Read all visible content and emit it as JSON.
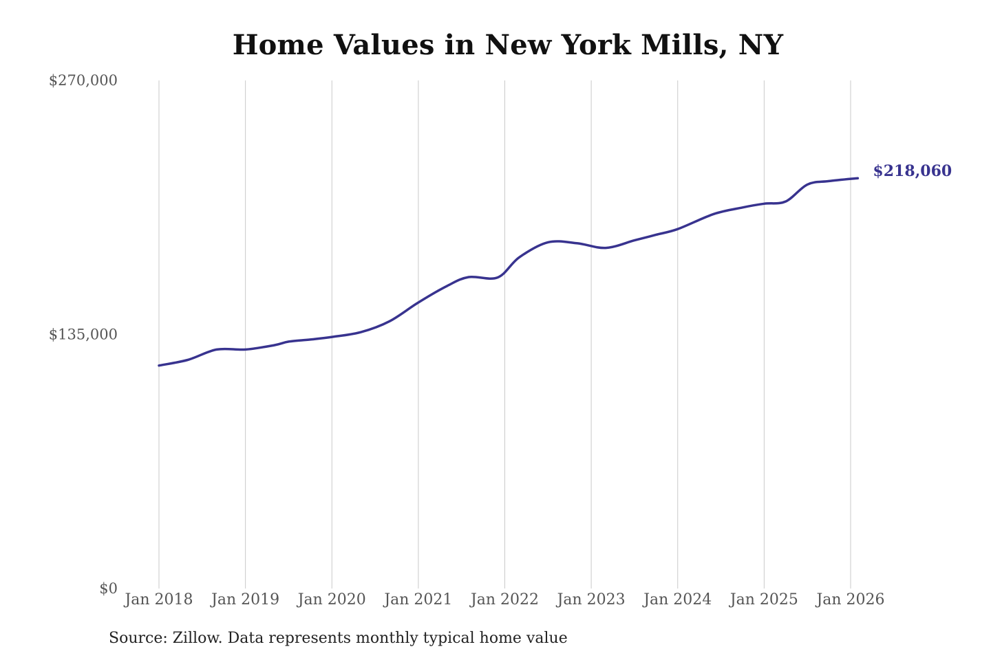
{
  "chart_data": {
    "type": "line",
    "title": "Home Values in New York Mills, NY",
    "source": "Source: Zillow. Data represents monthly typical home value",
    "xlabel": "",
    "ylabel": "",
    "x_ticks": [
      "Jan 2018",
      "Jan 2019",
      "Jan 2020",
      "Jan 2021",
      "Jan 2022",
      "Jan 2023",
      "Jan 2024",
      "Jan 2025",
      "Jan 2026"
    ],
    "y_ticks": [
      {
        "value": 0,
        "label": "$0"
      },
      {
        "value": 135000,
        "label": "$135,000"
      },
      {
        "value": 270000,
        "label": "$270,000"
      }
    ],
    "ylim": [
      0,
      270000
    ],
    "xlim": [
      2018.0,
      2026.0
    ],
    "grid": "vertical",
    "line_color": "#38338f",
    "end_label": "$218,060",
    "series": [
      {
        "values": [
          {
            "x": 2018.0,
            "y": 118500
          },
          {
            "x": 2018.333,
            "y": 121500
          },
          {
            "x": 2018.667,
            "y": 127000
          },
          {
            "x": 2019.0,
            "y": 127000
          },
          {
            "x": 2019.333,
            "y": 129300
          },
          {
            "x": 2019.5,
            "y": 131200
          },
          {
            "x": 2019.75,
            "y": 132300
          },
          {
            "x": 2020.0,
            "y": 133700
          },
          {
            "x": 2020.333,
            "y": 136200
          },
          {
            "x": 2020.667,
            "y": 142000
          },
          {
            "x": 2021.0,
            "y": 152000
          },
          {
            "x": 2021.333,
            "y": 160800
          },
          {
            "x": 2021.583,
            "y": 165500
          },
          {
            "x": 2021.917,
            "y": 165300
          },
          {
            "x": 2022.167,
            "y": 176000
          },
          {
            "x": 2022.5,
            "y": 184000
          },
          {
            "x": 2022.833,
            "y": 183500
          },
          {
            "x": 2023.167,
            "y": 181000
          },
          {
            "x": 2023.5,
            "y": 185000
          },
          {
            "x": 2023.75,
            "y": 188000
          },
          {
            "x": 2024.0,
            "y": 191000
          },
          {
            "x": 2024.417,
            "y": 199000
          },
          {
            "x": 2024.75,
            "y": 202500
          },
          {
            "x": 2025.0,
            "y": 204500
          },
          {
            "x": 2025.25,
            "y": 205700
          },
          {
            "x": 2025.5,
            "y": 214700
          },
          {
            "x": 2025.75,
            "y": 216500
          },
          {
            "x": 2026.083,
            "y": 218060
          }
        ]
      }
    ]
  }
}
